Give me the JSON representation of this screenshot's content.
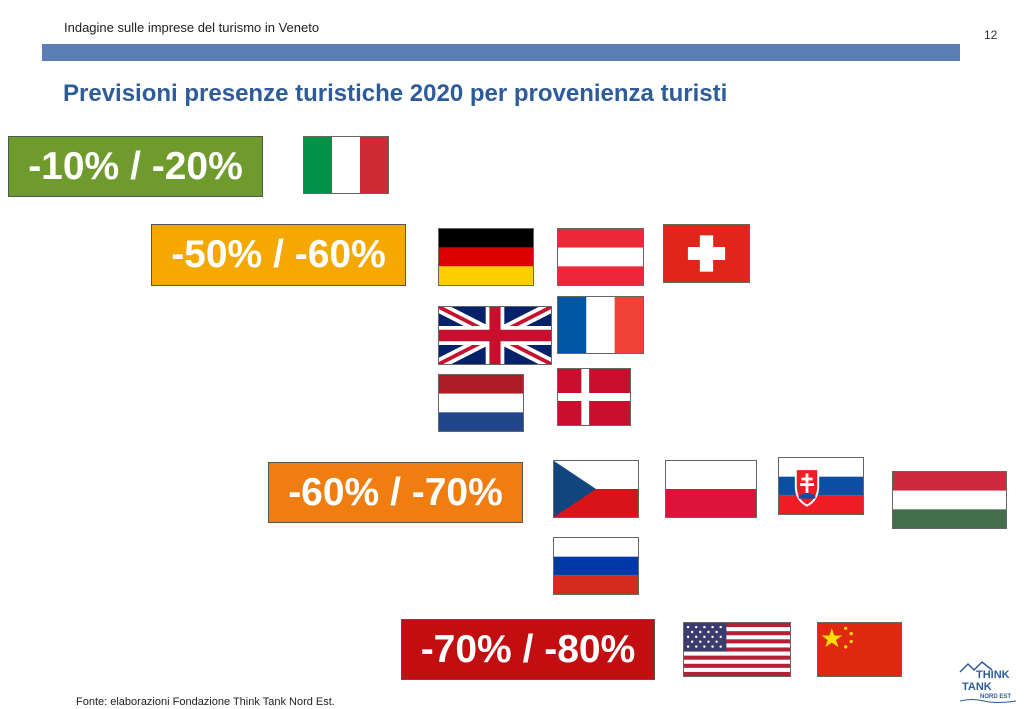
{
  "header": {
    "subtitle": "Indagine sulle imprese del turismo in Veneto",
    "page_number": "12"
  },
  "title": "Previsioni presenze turistiche 2020 per provenienza turisti",
  "bands": [
    {
      "label": "-10% / -20%",
      "color": "#6f9a2e",
      "flags": [
        "italy-flag-icon"
      ]
    },
    {
      "label": "-50% / -60%",
      "color": "#f5a800",
      "flags": [
        "germany-flag-icon",
        "austria-flag-icon",
        "switzerland-flag-icon",
        "uk-flag-icon",
        "france-flag-icon",
        "netherlands-flag-icon",
        "denmark-flag-icon"
      ]
    },
    {
      "label": "-60% / -70%",
      "color": "#f07d10",
      "flags": [
        "czech-flag-icon",
        "poland-flag-icon",
        "slovakia-flag-icon",
        "hungary-flag-icon",
        "russia-flag-icon"
      ]
    },
    {
      "label": "-70% / -80%",
      "color": "#c20d11",
      "flags": [
        "usa-flag-icon",
        "china-flag-icon"
      ]
    }
  ],
  "footer": {
    "source": "Fonte: elaborazioni Fondazione Think Tank Nord Est."
  },
  "logo": {
    "line1": "THINK",
    "line2": "TANK",
    "line3": "NORD EST"
  }
}
